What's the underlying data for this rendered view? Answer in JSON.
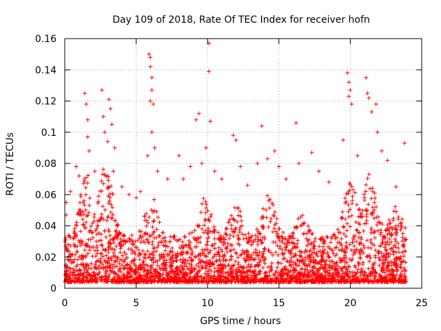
{
  "chart_data": {
    "type": "scatter",
    "title": "Day 109 of 2018, Rate Of TEC Index for receiver hofn",
    "xlabel": "GPS time / hours",
    "ylabel": "ROTI / TECUs",
    "xlim": [
      0,
      25
    ],
    "ylim": [
      0,
      0.16
    ],
    "xticks": [
      0,
      5,
      10,
      15,
      20,
      25
    ],
    "yticks": [
      0,
      0.02,
      0.04,
      0.06,
      0.08,
      0.1,
      0.12,
      0.14,
      0.16
    ],
    "xtick_labels": [
      "0",
      "5",
      "10",
      "15",
      "20",
      "25"
    ],
    "ytick_labels": [
      "0",
      "0.02",
      "0.04",
      "0.06",
      "0.08",
      "0.1",
      "0.12",
      "0.14",
      "0.16"
    ],
    "grid": true,
    "marker": "+",
    "color": "#ff0000",
    "x_data_range": [
      0,
      23.9
    ],
    "series": [
      {
        "name": "ROTI",
        "description": "dense point cloud, baseline mostly 0.005-0.03 TECU with spikes up to ~0.157",
        "points": [
          [
            0.1,
            0.055
          ],
          [
            0.1,
            0.047
          ],
          [
            0.4,
            0.062
          ],
          [
            0.8,
            0.078
          ],
          [
            1.0,
            0.072
          ],
          [
            1.4,
            0.125
          ],
          [
            1.5,
            0.118
          ],
          [
            1.6,
            0.108
          ],
          [
            1.6,
            0.097
          ],
          [
            1.7,
            0.088
          ],
          [
            2.1,
            0.075
          ],
          [
            2.6,
            0.127
          ],
          [
            2.7,
            0.11
          ],
          [
            2.8,
            0.1
          ],
          [
            3.0,
            0.094
          ],
          [
            3.1,
            0.121
          ],
          [
            3.2,
            0.115
          ],
          [
            3.3,
            0.105
          ],
          [
            3.4,
            0.075
          ],
          [
            3.5,
            0.09
          ],
          [
            4.0,
            0.065
          ],
          [
            4.5,
            0.06
          ],
          [
            5.0,
            0.058
          ],
          [
            5.3,
            0.062
          ],
          [
            5.8,
            0.085
          ],
          [
            5.9,
            0.15
          ],
          [
            6.0,
            0.148
          ],
          [
            6.0,
            0.142
          ],
          [
            6.1,
            0.135
          ],
          [
            6.1,
            0.127
          ],
          [
            6.0,
            0.12
          ],
          [
            6.2,
            0.118
          ],
          [
            6.1,
            0.1
          ],
          [
            6.3,
            0.09
          ],
          [
            6.5,
            0.075
          ],
          [
            7.2,
            0.07
          ],
          [
            8.0,
            0.085
          ],
          [
            8.3,
            0.07
          ],
          [
            8.8,
            0.078
          ],
          [
            9.2,
            0.108
          ],
          [
            9.4,
            0.112
          ],
          [
            9.6,
            0.08
          ],
          [
            9.9,
            0.09
          ],
          [
            10.1,
            0.157
          ],
          [
            10.1,
            0.139
          ],
          [
            10.2,
            0.107
          ],
          [
            10.5,
            0.075
          ],
          [
            11.0,
            0.07
          ],
          [
            11.8,
            0.098
          ],
          [
            12.0,
            0.095
          ],
          [
            12.3,
            0.078
          ],
          [
            12.8,
            0.066
          ],
          [
            13.5,
            0.08
          ],
          [
            13.8,
            0.104
          ],
          [
            14.2,
            0.083
          ],
          [
            14.7,
            0.088
          ],
          [
            15.0,
            0.078
          ],
          [
            15.5,
            0.07
          ],
          [
            16.2,
            0.106
          ],
          [
            16.4,
            0.08
          ],
          [
            17.3,
            0.087
          ],
          [
            17.8,
            0.075
          ],
          [
            18.5,
            0.068
          ],
          [
            19.5,
            0.095
          ],
          [
            19.8,
            0.138
          ],
          [
            19.9,
            0.132
          ],
          [
            20.0,
            0.127
          ],
          [
            19.9,
            0.123
          ],
          [
            20.1,
            0.118
          ],
          [
            20.5,
            0.085
          ],
          [
            21.1,
            0.135
          ],
          [
            21.2,
            0.125
          ],
          [
            21.3,
            0.122
          ],
          [
            21.5,
            0.113
          ],
          [
            21.8,
            0.118
          ],
          [
            21.9,
            0.1
          ],
          [
            22.2,
            0.088
          ],
          [
            22.6,
            0.082
          ],
          [
            23.2,
            0.065
          ],
          [
            23.8,
            0.093
          ]
        ]
      }
    ]
  }
}
